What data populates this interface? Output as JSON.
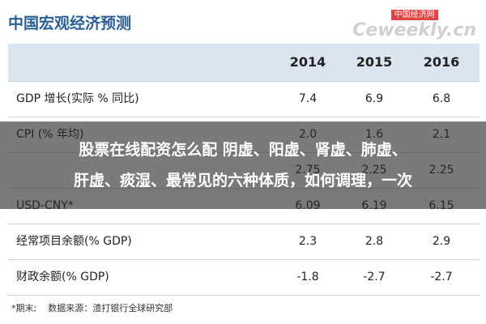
{
  "header": {
    "title": "中国宏观经济预测",
    "watermark": {
      "brand": "中国经济网",
      "site": "Ceweekly.cn"
    }
  },
  "table": {
    "columns": [
      "2014",
      "2015",
      "2016"
    ],
    "rows": [
      [
        "GDP 增长(实际 % 同比)",
        "7.4",
        "6.9",
        "6.8"
      ],
      [
        "CPI (% 年均)",
        "2.0",
        "1.6",
        "2.1"
      ],
      [
        null,
        "2.75",
        "2.25",
        "2.25"
      ],
      [
        "USD-CNY*",
        "6.09",
        "6.19",
        "6.15"
      ],
      [
        "经常项目余额(% GDP)",
        "2.3",
        "2.8",
        "2.9"
      ],
      [
        "财政余额(% GDP)",
        "-1.8",
        "-2.7",
        "-2.7"
      ]
    ],
    "footnote": "*期末;    数据来源：渣打银行全球研究部"
  },
  "overlay": {
    "lines": [
      "股票在线配资怎么配 阴虚、阳虚、肾虚、肺虚、",
      "肝虚、痰湿、最常见的六种体质，如何调理，一次"
    ]
  }
}
